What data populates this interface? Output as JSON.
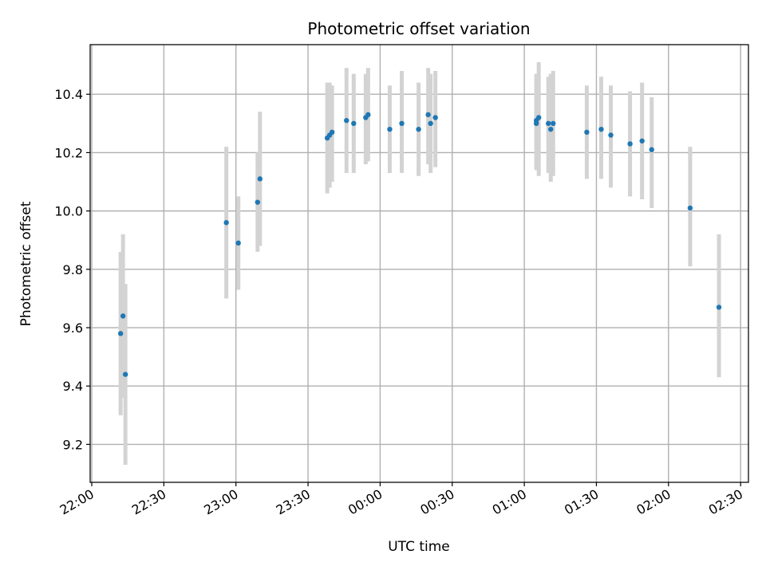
{
  "chart_data": {
    "type": "scatter",
    "title": "Photometric offset variation",
    "xlabel": "UTC time",
    "ylabel": "Photometric offset",
    "grid": true,
    "legend": "none",
    "xlim": [
      "22:00",
      "02:30"
    ],
    "ylim": [
      9.07,
      10.57
    ],
    "x_tick_labels": [
      "22:00",
      "22:30",
      "23:00",
      "23:30",
      "00:00",
      "00:30",
      "01:00",
      "01:30",
      "02:00",
      "02:30"
    ],
    "y_ticks": [
      9.2,
      9.4,
      9.6,
      9.8,
      10.0,
      10.2,
      10.4
    ],
    "y_tick_labels": [
      "9.2",
      "9.4",
      "9.6",
      "9.8",
      "10.0",
      "10.2",
      "10.4"
    ],
    "colors": {
      "point": "#1f77b4",
      "errorbar": "#d3d3d3",
      "grid": "#b0b0b0"
    },
    "series": [
      {
        "points": [
          {
            "x": "22:12",
            "y": 9.58,
            "lo": 9.3,
            "hi": 9.86
          },
          {
            "x": "22:13",
            "y": 9.64,
            "lo": 9.36,
            "hi": 9.92
          },
          {
            "x": "22:14",
            "y": 9.44,
            "lo": 9.13,
            "hi": 9.75
          },
          {
            "x": "22:56",
            "y": 9.96,
            "lo": 9.7,
            "hi": 10.22
          },
          {
            "x": "23:01",
            "y": 9.89,
            "lo": 9.73,
            "hi": 10.05
          },
          {
            "x": "23:09",
            "y": 10.03,
            "lo": 9.86,
            "hi": 10.2
          },
          {
            "x": "23:10",
            "y": 10.11,
            "lo": 9.88,
            "hi": 10.34
          },
          {
            "x": "23:38",
            "y": 10.25,
            "lo": 10.06,
            "hi": 10.44
          },
          {
            "x": "23:39",
            "y": 10.26,
            "lo": 10.08,
            "hi": 10.44
          },
          {
            "x": "23:40",
            "y": 10.27,
            "lo": 10.1,
            "hi": 10.43
          },
          {
            "x": "23:46",
            "y": 10.31,
            "lo": 10.13,
            "hi": 10.49
          },
          {
            "x": "23:49",
            "y": 10.3,
            "lo": 10.13,
            "hi": 10.47
          },
          {
            "x": "23:54",
            "y": 10.32,
            "lo": 10.16,
            "hi": 10.47
          },
          {
            "x": "23:55",
            "y": 10.33,
            "lo": 10.17,
            "hi": 10.49
          },
          {
            "x": "00:04",
            "y": 10.28,
            "lo": 10.13,
            "hi": 10.43
          },
          {
            "x": "00:09",
            "y": 10.3,
            "lo": 10.13,
            "hi": 10.48
          },
          {
            "x": "00:16",
            "y": 10.28,
            "lo": 10.12,
            "hi": 10.44
          },
          {
            "x": "00:20",
            "y": 10.33,
            "lo": 10.16,
            "hi": 10.49
          },
          {
            "x": "00:21",
            "y": 10.3,
            "lo": 10.13,
            "hi": 10.47
          },
          {
            "x": "00:23",
            "y": 10.32,
            "lo": 10.15,
            "hi": 10.48
          },
          {
            "x": "01:05",
            "y": 10.3,
            "lo": 10.14,
            "hi": 10.46
          },
          {
            "x": "01:05",
            "y": 10.31,
            "lo": 10.15,
            "hi": 10.47
          },
          {
            "x": "01:06",
            "y": 10.32,
            "lo": 10.12,
            "hi": 10.51
          },
          {
            "x": "01:10",
            "y": 10.3,
            "lo": 10.13,
            "hi": 10.46
          },
          {
            "x": "01:11",
            "y": 10.28,
            "lo": 10.1,
            "hi": 10.47
          },
          {
            "x": "01:12",
            "y": 10.3,
            "lo": 10.12,
            "hi": 10.48
          },
          {
            "x": "01:26",
            "y": 10.27,
            "lo": 10.11,
            "hi": 10.43
          },
          {
            "x": "01:32",
            "y": 10.28,
            "lo": 10.11,
            "hi": 10.46
          },
          {
            "x": "01:36",
            "y": 10.26,
            "lo": 10.08,
            "hi": 10.43
          },
          {
            "x": "01:44",
            "y": 10.23,
            "lo": 10.05,
            "hi": 10.41
          },
          {
            "x": "01:49",
            "y": 10.24,
            "lo": 10.04,
            "hi": 10.44
          },
          {
            "x": "01:53",
            "y": 10.21,
            "lo": 10.01,
            "hi": 10.39
          },
          {
            "x": "02:09",
            "y": 10.01,
            "lo": 9.81,
            "hi": 10.22
          },
          {
            "x": "02:21",
            "y": 9.67,
            "lo": 9.43,
            "hi": 9.92
          }
        ]
      }
    ]
  }
}
